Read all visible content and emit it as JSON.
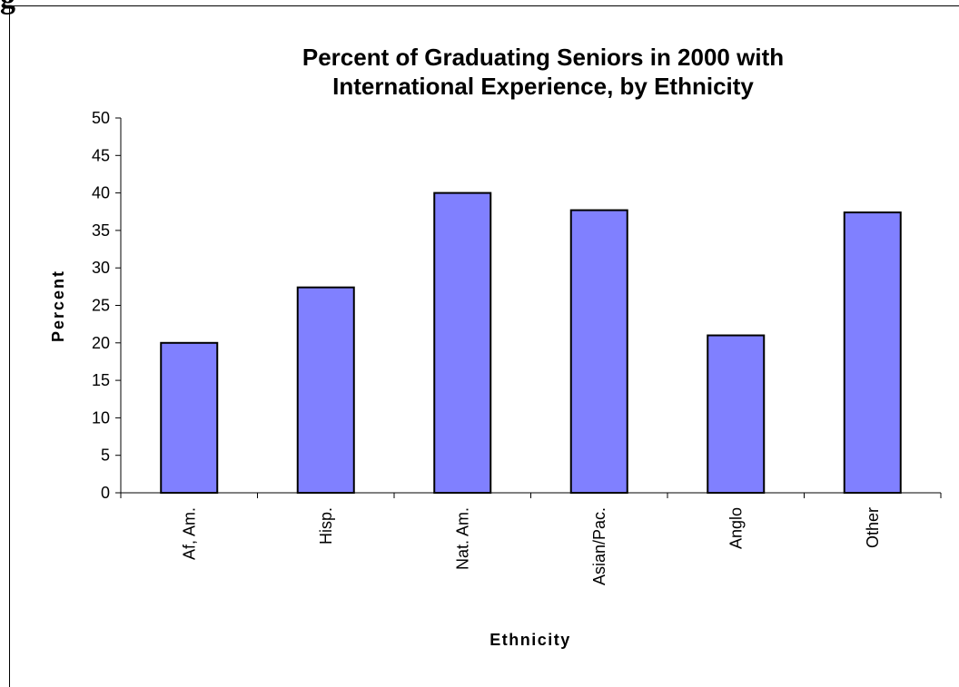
{
  "fragment_text": "g",
  "chart_data": {
    "type": "bar",
    "title_lines": [
      "Percent of Graduating Seniors in 2000 with",
      "International Experience, by Ethnicity"
    ],
    "categories": [
      "Af, Am.",
      "Hisp.",
      "Nat. Am.",
      "Asian/Pac.",
      "Anglo",
      "Other"
    ],
    "values": [
      20,
      27.4,
      40,
      37.7,
      21,
      37.4
    ],
    "xlabel": "Ethnicity",
    "ylabel": "Percent",
    "ylim": [
      0,
      50
    ],
    "yticks": [
      "0",
      "5",
      "10",
      "15",
      "20",
      "25",
      "30",
      "35",
      "40",
      "45",
      "50"
    ],
    "grid": false,
    "legend": "none",
    "bar_color": "#8080ff",
    "bar_border": "#000000"
  }
}
